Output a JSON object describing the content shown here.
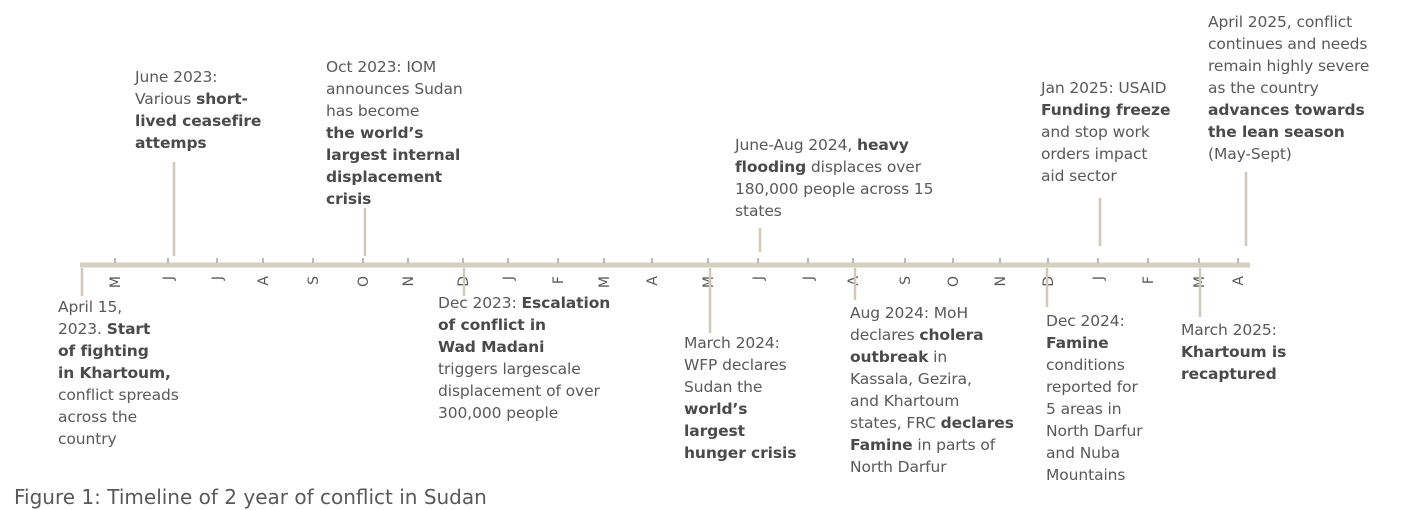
{
  "caption": "Figure 1: Timeline of 2 year of conflict in Sudan",
  "colors": {
    "axis": "#d5cfc2",
    "connector": "#cfc8bb",
    "tick": "#a6a6a6",
    "text": "#595959",
    "text_bold": "#4a4a4a"
  },
  "months": [
    "M",
    "J",
    "J",
    "A",
    "S",
    "O",
    "N",
    "D",
    "J",
    "F",
    "M",
    "A",
    "M",
    "J",
    "J",
    "A",
    "S",
    "O",
    "N",
    "D",
    "J",
    "F",
    "M",
    "A"
  ],
  "events": [
    {
      "id": "apr-2023",
      "lines": [
        [
          {
            "t": "April 15,"
          }
        ],
        [
          {
            "t": "2023. "
          },
          {
            "t": "Start",
            "b": true
          }
        ],
        [
          {
            "t": "of fighting",
            "b": true
          }
        ],
        [
          {
            "t": "in Khartoum,",
            "b": true
          }
        ],
        [
          {
            "t": "conflict spreads"
          }
        ],
        [
          {
            "t": "across the"
          }
        ],
        [
          {
            "t": "country"
          }
        ]
      ]
    },
    {
      "id": "jun-2023",
      "lines": [
        [
          {
            "t": "June 2023:"
          }
        ],
        [
          {
            "t": "Various "
          },
          {
            "t": "short-",
            "b": true
          }
        ],
        [
          {
            "t": "lived ceasefire",
            "b": true
          }
        ],
        [
          {
            "t": "attemps",
            "b": true
          }
        ]
      ]
    },
    {
      "id": "oct-2023",
      "lines": [
        [
          {
            "t": "Oct 2023: IOM"
          }
        ],
        [
          {
            "t": "announces Sudan"
          }
        ],
        [
          {
            "t": "has become"
          }
        ],
        [
          {
            "t": "the world’s",
            "b": true
          }
        ],
        [
          {
            "t": "largest internal",
            "b": true
          }
        ],
        [
          {
            "t": "displacement",
            "b": true
          }
        ],
        [
          {
            "t": "crisis",
            "b": true
          }
        ]
      ]
    },
    {
      "id": "dec-2023",
      "lines": [
        [
          {
            "t": "Dec 2023: "
          },
          {
            "t": "Escalation",
            "b": true
          }
        ],
        [
          {
            "t": "of conflict in",
            "b": true
          }
        ],
        [
          {
            "t": "Wad Madani",
            "b": true
          }
        ],
        [
          {
            "t": "triggers largescale"
          }
        ],
        [
          {
            "t": "displacement of over"
          }
        ],
        [
          {
            "t": "300,000 people"
          }
        ]
      ]
    },
    {
      "id": "mar-2024",
      "lines": [
        [
          {
            "t": "March 2024:"
          }
        ],
        [
          {
            "t": "WFP declares"
          }
        ],
        [
          {
            "t": "Sudan the"
          }
        ],
        [
          {
            "t": "world’s",
            "b": true
          }
        ],
        [
          {
            "t": "largest",
            "b": true
          }
        ],
        [
          {
            "t": "hunger crisis",
            "b": true
          }
        ]
      ]
    },
    {
      "id": "jun-aug-2024",
      "lines": [
        [
          {
            "t": "June-Aug 2024, "
          },
          {
            "t": "heavy",
            "b": true
          }
        ],
        [
          {
            "t": "flooding",
            "b": true
          },
          {
            "t": " displaces over"
          }
        ],
        [
          {
            "t": "180,000 people across 15"
          }
        ],
        [
          {
            "t": "states"
          }
        ]
      ]
    },
    {
      "id": "aug-2024",
      "lines": [
        [
          {
            "t": "Aug 2024: MoH"
          }
        ],
        [
          {
            "t": "declares "
          },
          {
            "t": "cholera",
            "b": true
          }
        ],
        [
          {
            "t": "outbreak",
            "b": true
          },
          {
            "t": " in"
          }
        ],
        [
          {
            "t": "Kassala, Gezira,"
          }
        ],
        [
          {
            "t": "and Khartoum"
          }
        ],
        [
          {
            "t": "states, FRC "
          },
          {
            "t": "declares",
            "b": true
          }
        ],
        [
          {
            "t": "Famine",
            "b": true
          },
          {
            "t": " in parts of"
          }
        ],
        [
          {
            "t": "North Darfur"
          }
        ]
      ]
    },
    {
      "id": "dec-2024",
      "lines": [
        [
          {
            "t": "Dec 2024:"
          }
        ],
        [
          {
            "t": "Famine",
            "b": true
          }
        ],
        [
          {
            "t": "conditions"
          }
        ],
        [
          {
            "t": "reported for"
          }
        ],
        [
          {
            "t": "5 areas in"
          }
        ],
        [
          {
            "t": "North Darfur"
          }
        ],
        [
          {
            "t": "and Nuba"
          }
        ],
        [
          {
            "t": "Mountains"
          }
        ]
      ]
    },
    {
      "id": "jan-2025",
      "lines": [
        [
          {
            "t": "Jan 2025: USAID"
          }
        ],
        [
          {
            "t": "Funding freeze",
            "b": true
          }
        ],
        [
          {
            "t": "and stop work"
          }
        ],
        [
          {
            "t": "orders impact"
          }
        ],
        [
          {
            "t": "aid sector"
          }
        ]
      ]
    },
    {
      "id": "mar-2025",
      "lines": [
        [
          {
            "t": "March 2025:"
          }
        ],
        [
          {
            "t": "Khartoum is",
            "b": true
          }
        ],
        [
          {
            "t": "recaptured",
            "b": true
          }
        ]
      ]
    },
    {
      "id": "apr-2025",
      "lines": [
        [
          {
            "t": "April 2025, conflict"
          }
        ],
        [
          {
            "t": "continues and needs"
          }
        ],
        [
          {
            "t": "remain highly severe"
          }
        ],
        [
          {
            "t": "as the country"
          }
        ],
        [
          {
            "t": "advances towards",
            "b": true
          }
        ],
        [
          {
            "t": "the lean season",
            "b": true
          }
        ],
        [
          {
            "t": "(May-Sept)"
          }
        ]
      ]
    }
  ]
}
